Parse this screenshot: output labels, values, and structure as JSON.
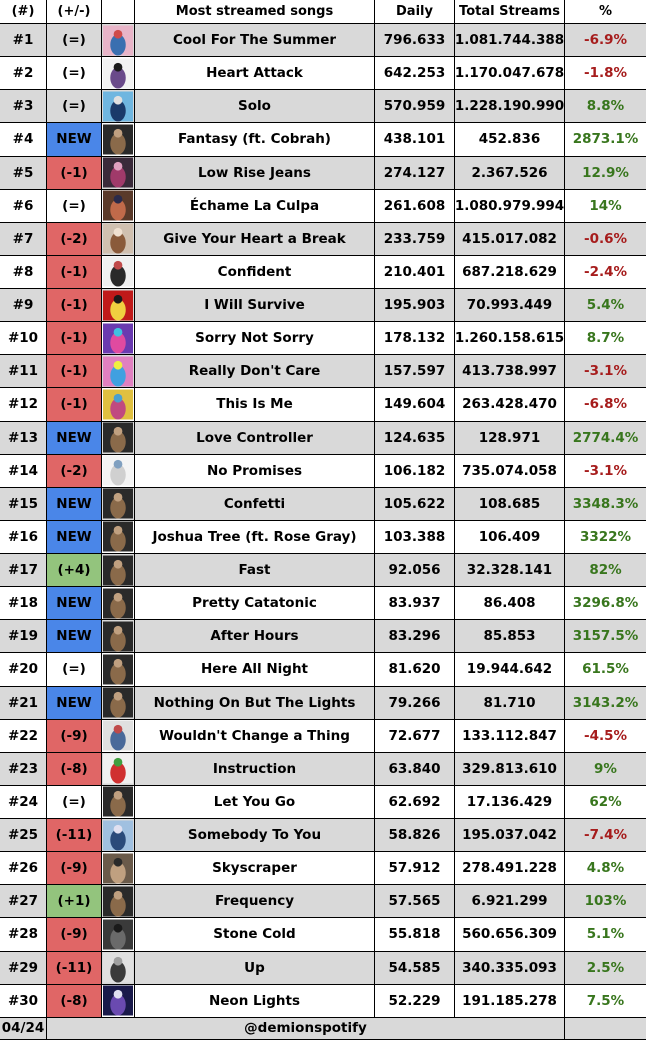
{
  "header": {
    "rank": "(#)",
    "change": "(+/-)",
    "title": "Most streamed songs",
    "daily": "Daily",
    "total": "Total Streams",
    "pct": "%"
  },
  "colors": {
    "new": "#4a86e8",
    "down": "#e06666",
    "up": "#93c47d",
    "negative_text": "#a61c1c",
    "positive_text": "#38761d",
    "stripe": "#d9d9d9"
  },
  "rows": [
    {
      "rank": "#1",
      "change": "(=)",
      "change_type": "same",
      "title": "Cool For The Summer",
      "daily": "796.633",
      "total": "1.081.744.388",
      "pct": "-6.9%",
      "art": [
        "#e8b4c8",
        "#3a6fb0",
        "#d04a4a"
      ]
    },
    {
      "rank": "#2",
      "change": "(=)",
      "change_type": "same",
      "title": "Heart Attack",
      "daily": "642.253",
      "total": "1.170.047.678",
      "pct": "-1.8%",
      "art": [
        "#f2f2f2",
        "#6a4a8a",
        "#1a1a1a"
      ]
    },
    {
      "rank": "#3",
      "change": "(=)",
      "change_type": "same",
      "title": "Solo",
      "daily": "570.959",
      "total": "1.228.190.990",
      "pct": "8.8%",
      "art": [
        "#6fb6e0",
        "#1a3a6a",
        "#e0e0e0"
      ]
    },
    {
      "rank": "#4",
      "change": "NEW",
      "change_type": "new",
      "title": "Fantasy (ft. Cobrah)",
      "daily": "438.101",
      "total": "452.836",
      "pct": "2873.1%",
      "art": [
        "#2a2a2a",
        "#8a6a4a",
        "#c0a080"
      ]
    },
    {
      "rank": "#5",
      "change": "(-1)",
      "change_type": "down",
      "title": "Low Rise Jeans",
      "daily": "274.127",
      "total": "2.367.526",
      "pct": "12.9%",
      "art": [
        "#3a2a3a",
        "#a03a6a",
        "#e0a0c0"
      ]
    },
    {
      "rank": "#6",
      "change": "(=)",
      "change_type": "same",
      "title": "Échame La Culpa",
      "daily": "261.608",
      "total": "1.080.979.994",
      "pct": "14%",
      "art": [
        "#5a3a2a",
        "#c06a4a",
        "#2a2a4a"
      ]
    },
    {
      "rank": "#7",
      "change": "(-2)",
      "change_type": "down",
      "title": "Give Your Heart a Break",
      "daily": "233.759",
      "total": "415.017.082",
      "pct": "-0.6%",
      "art": [
        "#d0c0b0",
        "#8a5a3a",
        "#f0e0d0"
      ]
    },
    {
      "rank": "#8",
      "change": "(-1)",
      "change_type": "down",
      "title": "Confident",
      "daily": "210.401",
      "total": "687.218.629",
      "pct": "-2.4%",
      "art": [
        "#f0f0f0",
        "#2a2a2a",
        "#c04a4a"
      ]
    },
    {
      "rank": "#9",
      "change": "(-1)",
      "change_type": "down",
      "title": "I Will Survive",
      "daily": "195.903",
      "total": "70.993.449",
      "pct": "5.4%",
      "art": [
        "#c01a1a",
        "#f0d040",
        "#1a1a1a"
      ]
    },
    {
      "rank": "#10",
      "change": "(-1)",
      "change_type": "down",
      "title": "Sorry Not Sorry",
      "daily": "178.132",
      "total": "1.260.158.615",
      "pct": "8.7%",
      "art": [
        "#6a3ab0",
        "#e04aa0",
        "#40c0e0"
      ]
    },
    {
      "rank": "#11",
      "change": "(-1)",
      "change_type": "down",
      "title": "Really Don't Care",
      "daily": "157.597",
      "total": "413.738.997",
      "pct": "-3.1%",
      "art": [
        "#e080c0",
        "#40a0e0",
        "#f0f040"
      ]
    },
    {
      "rank": "#12",
      "change": "(-1)",
      "change_type": "down",
      "title": "This Is Me",
      "daily": "149.604",
      "total": "263.428.470",
      "pct": "-6.8%",
      "art": [
        "#e0c040",
        "#c04a80",
        "#4aa0d0"
      ]
    },
    {
      "rank": "#13",
      "change": "NEW",
      "change_type": "new",
      "title": "Love Controller",
      "daily": "124.635",
      "total": "128.971",
      "pct": "2774.4%",
      "art": [
        "#2a2a2a",
        "#8a6a4a",
        "#c0a080"
      ]
    },
    {
      "rank": "#14",
      "change": "(-2)",
      "change_type": "down",
      "title": "No Promises",
      "daily": "106.182",
      "total": "735.074.058",
      "pct": "-3.1%",
      "art": [
        "#f4f4f4",
        "#d0d0d0",
        "#80a0c0"
      ]
    },
    {
      "rank": "#15",
      "change": "NEW",
      "change_type": "new",
      "title": "Confetti",
      "daily": "105.622",
      "total": "108.685",
      "pct": "3348.3%",
      "art": [
        "#2a2a2a",
        "#8a6a4a",
        "#c0a080"
      ]
    },
    {
      "rank": "#16",
      "change": "NEW",
      "change_type": "new",
      "title": "Joshua Tree (ft. Rose Gray)",
      "daily": "103.388",
      "total": "106.409",
      "pct": "3322%",
      "art": [
        "#2a2a2a",
        "#8a6a4a",
        "#c0a080"
      ]
    },
    {
      "rank": "#17",
      "change": "(+4)",
      "change_type": "up",
      "title": "Fast",
      "daily": "92.056",
      "total": "32.328.141",
      "pct": "82%",
      "art": [
        "#2a2a2a",
        "#8a6a4a",
        "#c0a080"
      ]
    },
    {
      "rank": "#18",
      "change": "NEW",
      "change_type": "new",
      "title": "Pretty Catatonic",
      "daily": "83.937",
      "total": "86.408",
      "pct": "3296.8%",
      "art": [
        "#2a2a2a",
        "#8a6a4a",
        "#c0a080"
      ]
    },
    {
      "rank": "#19",
      "change": "NEW",
      "change_type": "new",
      "title": "After Hours",
      "daily": "83.296",
      "total": "85.853",
      "pct": "3157.5%",
      "art": [
        "#2a2a2a",
        "#8a6a4a",
        "#c0a080"
      ]
    },
    {
      "rank": "#20",
      "change": "(=)",
      "change_type": "same",
      "title": "Here All Night",
      "daily": "81.620",
      "total": "19.944.642",
      "pct": "61.5%",
      "art": [
        "#2a2a2a",
        "#8a6a4a",
        "#c0a080"
      ]
    },
    {
      "rank": "#21",
      "change": "NEW",
      "change_type": "new",
      "title": "Nothing On But The Lights",
      "daily": "79.266",
      "total": "81.710",
      "pct": "3143.2%",
      "art": [
        "#2a2a2a",
        "#8a6a4a",
        "#c0a080"
      ]
    },
    {
      "rank": "#22",
      "change": "(-9)",
      "change_type": "down",
      "title": "Wouldn't Change a Thing",
      "daily": "72.677",
      "total": "133.112.847",
      "pct": "-4.5%",
      "art": [
        "#e0e0e0",
        "#4a6a9a",
        "#c04a4a"
      ]
    },
    {
      "rank": "#23",
      "change": "(-8)",
      "change_type": "down",
      "title": "Instruction",
      "daily": "63.840",
      "total": "329.813.610",
      "pct": "9%",
      "art": [
        "#f0f0f0",
        "#d03030",
        "#40a040"
      ]
    },
    {
      "rank": "#24",
      "change": "(=)",
      "change_type": "same",
      "title": "Let You Go",
      "daily": "62.692",
      "total": "17.136.429",
      "pct": "62%",
      "art": [
        "#2a2a2a",
        "#8a6a4a",
        "#c0a080"
      ]
    },
    {
      "rank": "#25",
      "change": "(-11)",
      "change_type": "down",
      "title": "Somebody To You",
      "daily": "58.826",
      "total": "195.037.042",
      "pct": "-7.4%",
      "art": [
        "#a0c0e0",
        "#2a4a7a",
        "#e0e0f0"
      ]
    },
    {
      "rank": "#26",
      "change": "(-9)",
      "change_type": "down",
      "title": "Skyscraper",
      "daily": "57.912",
      "total": "278.491.228",
      "pct": "4.8%",
      "art": [
        "#6a5a4a",
        "#c0a080",
        "#2a2a2a"
      ]
    },
    {
      "rank": "#27",
      "change": "(+1)",
      "change_type": "up",
      "title": "Frequency",
      "daily": "57.565",
      "total": "6.921.299",
      "pct": "103%",
      "art": [
        "#2a2a2a",
        "#8a6a4a",
        "#c0a080"
      ]
    },
    {
      "rank": "#28",
      "change": "(-9)",
      "change_type": "down",
      "title": "Stone Cold",
      "daily": "55.818",
      "total": "560.656.309",
      "pct": "5.1%",
      "art": [
        "#3a3a3a",
        "#6a6a6a",
        "#1a1a1a"
      ]
    },
    {
      "rank": "#29",
      "change": "(-11)",
      "change_type": "down",
      "title": "Up",
      "daily": "54.585",
      "total": "340.335.093",
      "pct": "2.5%",
      "art": [
        "#e0e0e0",
        "#3a3a3a",
        "#a0a0a0"
      ]
    },
    {
      "rank": "#30",
      "change": "(-8)",
      "change_type": "down",
      "title": "Neon Lights",
      "daily": "52.229",
      "total": "191.185.278",
      "pct": "7.5%",
      "art": [
        "#1a1a4a",
        "#6a4ab0",
        "#e0e0f0"
      ]
    }
  ],
  "footer": {
    "date": "04/24",
    "handle": "@demionspotify"
  }
}
